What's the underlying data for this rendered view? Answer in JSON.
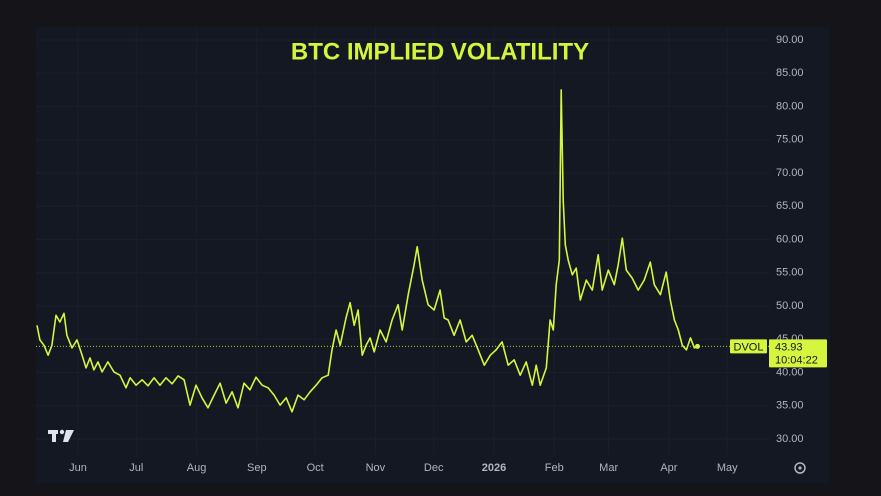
{
  "chart_data": {
    "type": "line",
    "title": "BTC IMPLIED VOLATILITY",
    "countdown": "10:04:22",
    "series": [
      {
        "name": "DVOL",
        "color": "#d6f53f",
        "x": [
          -21.1,
          -19.6,
          -17.5,
          -15.4,
          -13.4,
          -11.3,
          -9.3,
          -7.2,
          -5.7,
          -3.1,
          -0.5,
          2.1,
          4.1,
          6.2,
          8.2,
          10.3,
          12.4,
          15.4,
          18.5,
          21.6,
          24.7,
          26.8,
          29.9,
          33.0,
          36.0,
          39.1,
          42.2,
          45.3,
          48.4,
          51.5,
          54.6,
          57.6,
          60.7,
          63.8,
          66.9,
          70.0,
          73.1,
          76.2,
          79.3,
          82.3,
          85.4,
          88.5,
          91.6,
          94.7,
          97.8,
          100.9,
          104.0,
          107.1,
          110.1,
          113.2,
          116.3,
          119.4,
          122.5,
          125.6,
          128.7,
          130.7,
          132.8,
          134.9,
          137.9,
          140.0,
          142.1,
          144.1,
          146.2,
          148.2,
          150.3,
          152.4,
          155.4,
          158.5,
          161.6,
          164.7,
          166.8,
          169.9,
          172.9,
          174.5,
          177.1,
          180.1,
          183.2,
          186.3,
          188.4,
          190.4,
          193.5,
          196.6,
          199.7,
          202.8,
          205.9,
          209.0,
          212.1,
          215.1,
          218.2,
          221.3,
          224.4,
          227.5,
          230.6,
          233.7,
          235.7,
          237.8,
          240.9,
          242.9,
          244.5,
          246.0,
          247.6,
          248.6,
          249.6,
          250.7,
          252.2,
          254.3,
          256.3,
          258.4,
          261.5,
          264.6,
          267.6,
          269.7,
          272.8,
          275.9,
          277.9,
          280.0,
          282.1,
          285.1,
          288.2,
          291.3,
          294.4,
          296.5,
          299.6,
          302.6,
          304.7,
          306.8,
          308.8,
          310.9,
          313.0,
          315.1,
          317.1,
          318.7
        ],
        "values": [
          47.1,
          44.9,
          44.1,
          42.6,
          44.1,
          48.6,
          47.6,
          48.9,
          45.6,
          43.7,
          44.9,
          42.6,
          40.7,
          42.2,
          40.4,
          41.6,
          40.1,
          41.6,
          40.1,
          39.6,
          37.7,
          39.2,
          38.1,
          38.9,
          38.0,
          39.2,
          38.1,
          39.2,
          38.3,
          39.5,
          38.9,
          35.1,
          38.1,
          36.2,
          34.7,
          36.6,
          38.4,
          35.4,
          37.1,
          34.7,
          38.4,
          37.4,
          39.3,
          38.1,
          37.7,
          36.6,
          35.1,
          36.2,
          34.1,
          36.6,
          35.9,
          37.1,
          38.1,
          39.2,
          39.6,
          43.4,
          46.4,
          44.1,
          48.2,
          50.5,
          47.1,
          49.4,
          42.6,
          44.1,
          45.2,
          43.1,
          46.4,
          44.6,
          47.9,
          50.2,
          46.4,
          51.7,
          56.2,
          58.9,
          53.9,
          50.2,
          49.4,
          52.4,
          48.2,
          47.9,
          45.6,
          47.9,
          44.6,
          45.6,
          43.4,
          41.1,
          42.6,
          43.4,
          44.6,
          41.1,
          41.9,
          39.6,
          41.6,
          38.1,
          41.1,
          38.1,
          40.7,
          47.9,
          46.4,
          53.2,
          56.9,
          82.5,
          65.9,
          59.2,
          56.9,
          54.7,
          55.7,
          50.9,
          53.9,
          52.4,
          57.7,
          52.4,
          55.4,
          53.2,
          56.2,
          60.2,
          55.4,
          54.2,
          52.4,
          53.9,
          56.6,
          53.2,
          51.7,
          55.1,
          50.9,
          47.9,
          46.4,
          44.1,
          43.4,
          45.2,
          43.7,
          43.93
        ]
      }
    ],
    "xlim": [
      -21.6,
      356
    ],
    "xticks": [
      {
        "value": 0,
        "label": "Jun"
      },
      {
        "value": 30,
        "label": "Jul"
      },
      {
        "value": 61,
        "label": "Aug"
      },
      {
        "value": 92,
        "label": "Sep"
      },
      {
        "value": 122,
        "label": "Oct"
      },
      {
        "value": 153,
        "label": "Nov"
      },
      {
        "value": 183,
        "label": "Dec"
      },
      {
        "value": 214,
        "label": "2026"
      },
      {
        "value": 245,
        "label": "Feb"
      },
      {
        "value": 273,
        "label": "Mar"
      },
      {
        "value": 304,
        "label": "Apr"
      },
      {
        "value": 334,
        "label": "May"
      }
    ],
    "ylim": [
      27.6,
      91.95
    ],
    "yticks": [
      {
        "value": 30,
        "label": "30.00"
      },
      {
        "value": 35,
        "label": "35.00"
      },
      {
        "value": 40,
        "label": "40.00"
      },
      {
        "value": 45,
        "label": "45.00"
      },
      {
        "value": 50,
        "label": "50.00"
      },
      {
        "value": 55,
        "label": "55.00"
      },
      {
        "value": 60,
        "label": "60.00"
      },
      {
        "value": 65,
        "label": "65.00"
      },
      {
        "value": 70,
        "label": "70.00"
      },
      {
        "value": 75,
        "label": "75.00"
      },
      {
        "value": 80,
        "label": "80.00"
      },
      {
        "value": 85,
        "label": "85.00"
      },
      {
        "value": 90,
        "label": "90.00"
      }
    ],
    "grid": true
  }
}
